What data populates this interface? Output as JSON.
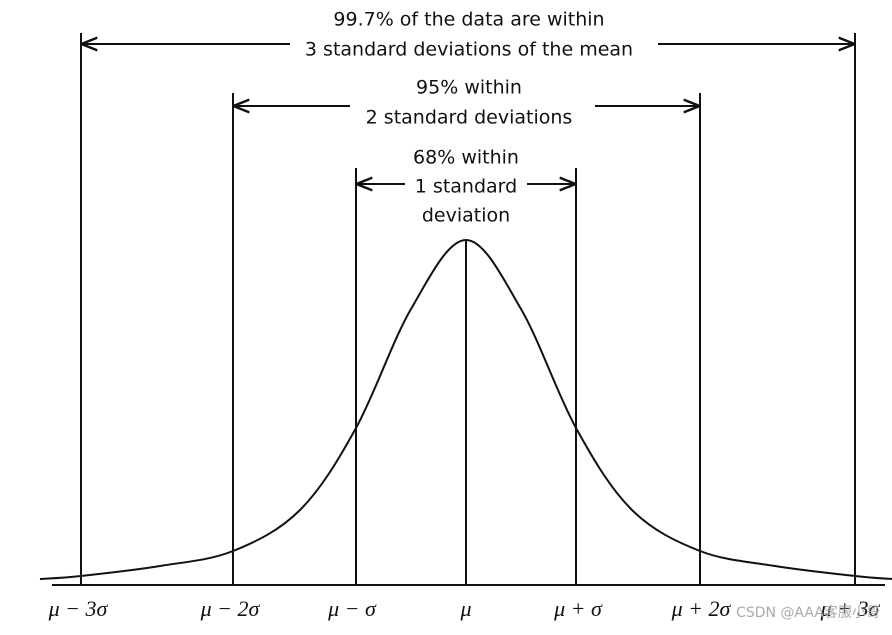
{
  "annotations": [
    {
      "lines": [
        "99.7% of the data are within",
        "3 standard deviations of the mean"
      ]
    },
    {
      "lines": [
        "95% within",
        "2 standard deviations"
      ]
    },
    {
      "lines": [
        "68% within",
        "1 standard",
        "deviation"
      ]
    }
  ],
  "axis_labels": [
    "μ − 3σ",
    "μ − 2σ",
    "μ − σ",
    "μ",
    "μ + σ",
    "μ + 2σ",
    "μ + 3σ"
  ],
  "watermark": "CSDN @AAA客服小哥"
}
